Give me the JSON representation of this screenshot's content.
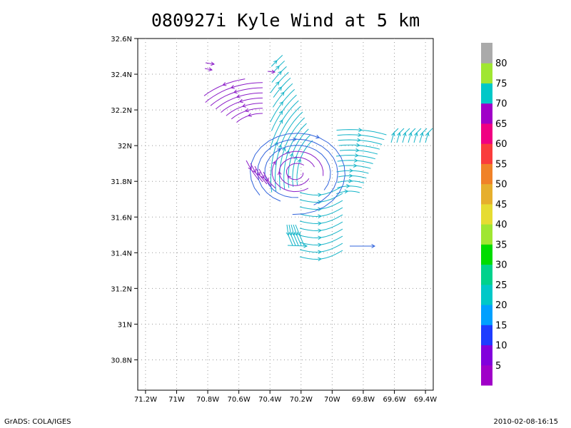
{
  "title": "080927i Kyle Wind at 5 km",
  "footer_left": "GrADS: COLA/IGES",
  "footer_right": "2010-02-08-16:15",
  "chart_data": {
    "type": "streamline",
    "xlim": [
      -71.25,
      -69.35
    ],
    "ylim": [
      30.63,
      32.6
    ],
    "x_ticks": [
      -71.2,
      -71.0,
      -70.8,
      -70.6,
      -70.4,
      -70.2,
      -70.0,
      -69.8,
      -69.6,
      -69.4
    ],
    "x_tick_labels": [
      "71.2W",
      "71W",
      "70.8W",
      "70.6W",
      "70.4W",
      "70.2W",
      "70W",
      "69.8W",
      "69.6W",
      "69.4W"
    ],
    "y_ticks": [
      30.8,
      31.0,
      31.2,
      31.4,
      31.6,
      31.8,
      32.0,
      32.2,
      32.4,
      32.6
    ],
    "y_tick_labels": [
      "30.8N",
      "31N",
      "31.2N",
      "31.4N",
      "31.6N",
      "31.8N",
      "32N",
      "32.2N",
      "32.4N",
      "32.6N"
    ],
    "grid": true,
    "colorbar": {
      "levels": [
        "5",
        "10",
        "15",
        "20",
        "25",
        "30",
        "35",
        "40",
        "45",
        "50",
        "55",
        "60",
        "65",
        "70",
        "75",
        "80"
      ],
      "colors": [
        "#a000c8",
        "#8200dc",
        "#1e3cff",
        "#00a0ff",
        "#00c8c8",
        "#00d28c",
        "#00dc00",
        "#a0e632",
        "#e6dc32",
        "#e6af2d",
        "#f08228",
        "#fa3c3c",
        "#f00082",
        "#a000c8",
        "#00c8c8",
        "#a0e632",
        "#aaaaaa"
      ]
    },
    "streamline_colors": {
      "purple": "#8c1ec8",
      "blue": "#3264dc",
      "cyan": "#14b4c8"
    }
  }
}
